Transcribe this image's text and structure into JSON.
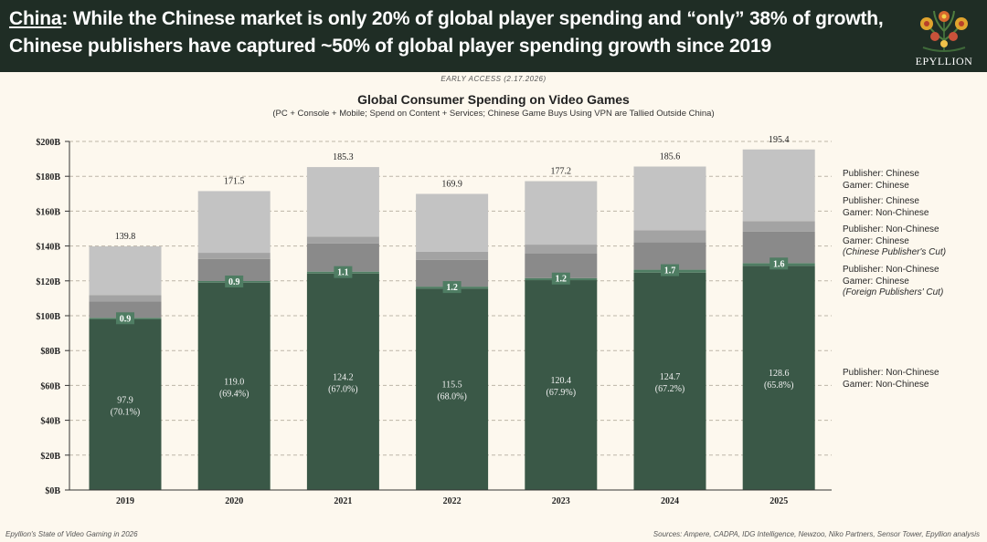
{
  "header": {
    "headline_lead": "China",
    "headline_rest": ": While the Chinese market is only 20% of global player spending and “only” 38% of growth, Chinese publishers have captured ~50% of global player spending growth since 2019",
    "logo_text": "EPYLLION"
  },
  "early_access": "EARLY ACCESS (2.17.2026)",
  "footer": {
    "left": "Epyllion's State of Video Gaming in 2026",
    "right": "Sources: Ampere, CADPA, IDG Intelligence, Newzoo, Niko Partners, Sensor Tower, Epyllion analysis"
  },
  "legend": [
    {
      "line1": "Publisher: Chinese",
      "line2": "Gamer: Chinese",
      "line3": ""
    },
    {
      "line1": "Publisher: Chinese",
      "line2": "Gamer: Non-Chinese",
      "line3": ""
    },
    {
      "line1": "Publisher: Non-Chinese",
      "line2": "Gamer: Chinese",
      "line3": "(Chinese Publisher's Cut)"
    },
    {
      "line1": "Publisher: Non-Chinese",
      "line2": "Gamer: Chinese",
      "line3": "(Foreign Publishers' Cut)"
    },
    {
      "line1": "Publisher: Non-Chinese",
      "line2": "Gamer: Non-Chinese",
      "line3": ""
    }
  ],
  "chart_data": {
    "type": "bar",
    "stacked": true,
    "title": "Global Consumer Spending on Video Games",
    "subtitle": "(PC + Console + Mobile; Spend on Content + Services; Chinese Game Buys Using VPN are Tallied Outside China)",
    "categories": [
      "2019",
      "2020",
      "2021",
      "2022",
      "2023",
      "2024",
      "2025"
    ],
    "ylim": [
      0,
      200
    ],
    "yticks": [
      "$0B",
      "$20B",
      "$40B",
      "$60B",
      "$80B",
      "$100B",
      "$120B",
      "$140B",
      "$160B",
      "$180B",
      "$200B"
    ],
    "grid": true,
    "legend_position": "right",
    "series": [
      {
        "name": "Publisher: Non-Chinese / Gamer: Non-Chinese",
        "values": [
          97.9,
          119.0,
          124.2,
          115.5,
          120.4,
          124.7,
          128.6
        ],
        "labels": [
          "(70.1%)",
          "(69.4%)",
          "(67.0%)",
          "(68.0%)",
          "(67.9%)",
          "(67.2%)",
          "(65.8%)"
        ],
        "color": "#3a5847"
      },
      {
        "name": "Publisher: Non-Chinese / Gamer: Chinese (Foreign Publishers' Cut)",
        "values": [
          0.9,
          0.9,
          1.1,
          1.2,
          1.2,
          1.7,
          1.6
        ],
        "color": "#4f7d63"
      },
      {
        "name": "Publisher: Non-Chinese / Gamer: Chinese (Chinese Publisher's Cut)",
        "values": [
          9.3,
          12.7,
          16.1,
          15.4,
          14.0,
          15.7,
          18.0
        ],
        "color": "#8a8a8a"
      },
      {
        "name": "Publisher: Chinese / Gamer: Non-Chinese",
        "values": [
          3.8,
          3.5,
          4.0,
          4.6,
          5.2,
          7.0,
          6.1
        ],
        "color": "#a3a3a3"
      },
      {
        "name": "Publisher: Chinese / Gamer: Chinese",
        "values": [
          27.9,
          35.4,
          39.9,
          33.2,
          36.4,
          36.5,
          41.1
        ],
        "color": "#c3c3c3"
      }
    ],
    "totals": [
      "139.8",
      "171.5",
      "185.3",
      "169.9",
      "177.2",
      "185.6",
      "195.4"
    ],
    "base_labels": [
      "97.9",
      "119.0",
      "124.2",
      "115.5",
      "120.4",
      "124.7",
      "128.6"
    ],
    "cut_labels": [
      "0.9",
      "0.9",
      "1.1",
      "1.2",
      "1.2",
      "1.7",
      "1.6"
    ]
  }
}
